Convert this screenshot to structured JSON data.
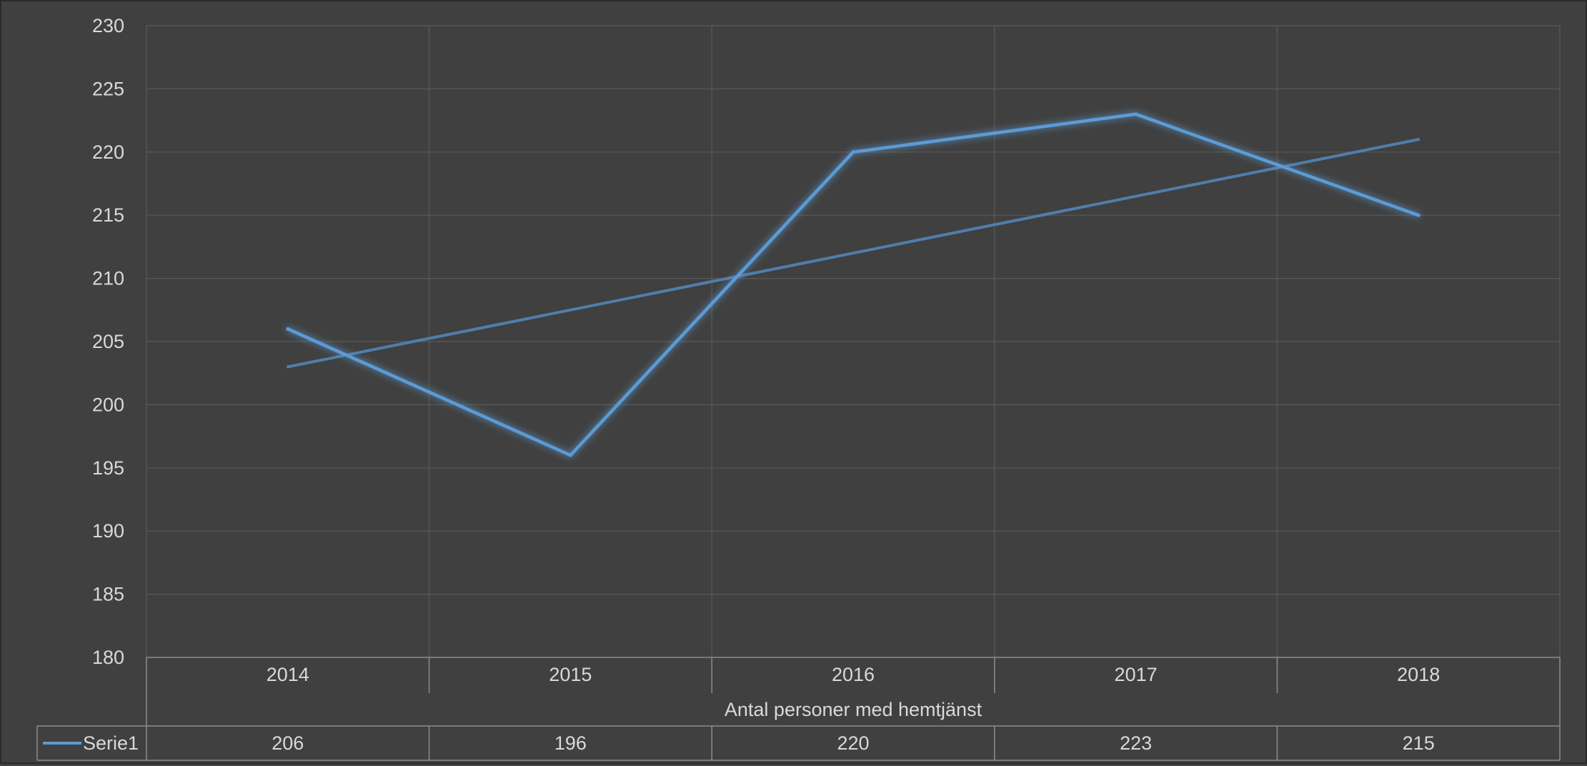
{
  "colors": {
    "background": "#404040",
    "gridline": "#595959",
    "series": "#5b9bd5",
    "trendline": "#4f7eab",
    "text": "#d9d9d9",
    "table_border": "#8c8c8c"
  },
  "chart_data": {
    "type": "line",
    "title": "",
    "category_group_label": "Antal personer med hemtjänst",
    "categories": [
      "2014",
      "2015",
      "2016",
      "2017",
      "2018"
    ],
    "series": [
      {
        "name": "Serie1",
        "values": [
          206,
          196,
          220,
          223,
          215
        ]
      }
    ],
    "trendline": {
      "type": "linear",
      "series": "Serie1"
    },
    "y_axis": {
      "min": 180,
      "max": 230,
      "step": 5,
      "ticks": [
        "180",
        "185",
        "190",
        "195",
        "200",
        "205",
        "210",
        "215",
        "220",
        "225",
        "230"
      ]
    },
    "grid": {
      "horizontal": true,
      "vertical": true
    },
    "legend": "data-table-left",
    "data_table": true
  }
}
